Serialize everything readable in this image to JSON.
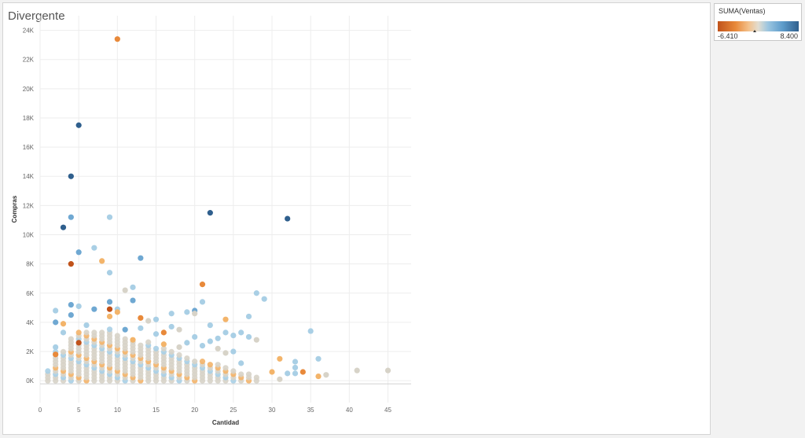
{
  "sheet": {
    "title": "Divergente"
  },
  "legend": {
    "title": "SUMA(Ventas)",
    "min_label": "-6.410",
    "max_label": "8.400"
  },
  "colors": {
    "dark_orange": "#c0521a",
    "orange": "#e8893a",
    "light_orange": "#f3b46a",
    "neutral": "#d7d3c8",
    "light_blue": "#a9cfe5",
    "blue": "#6fa8d2",
    "dark_blue": "#2f5f8d",
    "gridline": "#ededed"
  },
  "chart_data": {
    "type": "scatter",
    "title": "",
    "xlabel": "Cantidad",
    "ylabel": "Compras",
    "xlim": [
      0,
      48
    ],
    "ylim": [
      -1500,
      25000
    ],
    "xticks": [
      0,
      5,
      10,
      15,
      20,
      25,
      30,
      35,
      40,
      45
    ],
    "xtick_labels": [
      "0",
      "5",
      "10",
      "15",
      "20",
      "25",
      "30",
      "35",
      "40",
      "45"
    ],
    "yticks": [
      0,
      2000,
      4000,
      6000,
      8000,
      10000,
      12000,
      14000,
      16000,
      18000,
      20000,
      22000,
      24000
    ],
    "ytick_labels": [
      "0K",
      "2K",
      "4K",
      "6K",
      "8K",
      "10K",
      "12K",
      "14K",
      "16K",
      "18K",
      "20K",
      "22K",
      "24K"
    ],
    "color_field": "SUMA(Ventas)",
    "points": [
      {
        "x": 10,
        "y": 23400,
        "c": "orange"
      },
      {
        "x": 5,
        "y": 17500,
        "c": "dark_blue"
      },
      {
        "x": 4,
        "y": 14000,
        "c": "dark_blue"
      },
      {
        "x": 22,
        "y": 11500,
        "c": "dark_blue"
      },
      {
        "x": 4,
        "y": 11200,
        "c": "blue"
      },
      {
        "x": 9,
        "y": 11200,
        "c": "light_blue"
      },
      {
        "x": 32,
        "y": 11100,
        "c": "dark_blue"
      },
      {
        "x": 3,
        "y": 10500,
        "c": "dark_blue"
      },
      {
        "x": 7,
        "y": 9100,
        "c": "light_blue"
      },
      {
        "x": 5,
        "y": 8800,
        "c": "blue"
      },
      {
        "x": 13,
        "y": 8400,
        "c": "blue"
      },
      {
        "x": 8,
        "y": 8200,
        "c": "light_orange"
      },
      {
        "x": 4,
        "y": 8000,
        "c": "dark_orange"
      },
      {
        "x": 9,
        "y": 7400,
        "c": "light_blue"
      },
      {
        "x": 21,
        "y": 6600,
        "c": "orange"
      },
      {
        "x": 12,
        "y": 6400,
        "c": "light_blue"
      },
      {
        "x": 11,
        "y": 6200,
        "c": "neutral"
      },
      {
        "x": 28,
        "y": 6000,
        "c": "light_blue"
      },
      {
        "x": 29,
        "y": 5600,
        "c": "light_blue"
      },
      {
        "x": 12,
        "y": 5500,
        "c": "blue"
      },
      {
        "x": 21,
        "y": 5400,
        "c": "light_blue"
      },
      {
        "x": 9,
        "y": 5400,
        "c": "blue"
      },
      {
        "x": 4,
        "y": 5200,
        "c": "blue"
      },
      {
        "x": 5,
        "y": 5100,
        "c": "light_blue"
      },
      {
        "x": 9,
        "y": 4900,
        "c": "dark_orange"
      },
      {
        "x": 10,
        "y": 4900,
        "c": "light_blue"
      },
      {
        "x": 7,
        "y": 4900,
        "c": "blue"
      },
      {
        "x": 2,
        "y": 4800,
        "c": "light_blue"
      },
      {
        "x": 20,
        "y": 4800,
        "c": "blue"
      },
      {
        "x": 10,
        "y": 4700,
        "c": "light_orange"
      },
      {
        "x": 17,
        "y": 4600,
        "c": "light_blue"
      },
      {
        "x": 19,
        "y": 4700,
        "c": "light_blue"
      },
      {
        "x": 20,
        "y": 4600,
        "c": "neutral"
      },
      {
        "x": 4,
        "y": 4500,
        "c": "blue"
      },
      {
        "x": 9,
        "y": 4400,
        "c": "light_orange"
      },
      {
        "x": 27,
        "y": 4400,
        "c": "light_blue"
      },
      {
        "x": 13,
        "y": 4300,
        "c": "orange"
      },
      {
        "x": 15,
        "y": 4200,
        "c": "light_blue"
      },
      {
        "x": 24,
        "y": 4200,
        "c": "light_orange"
      },
      {
        "x": 14,
        "y": 4100,
        "c": "neutral"
      },
      {
        "x": 2,
        "y": 4000,
        "c": "blue"
      },
      {
        "x": 3,
        "y": 3900,
        "c": "light_orange"
      },
      {
        "x": 22,
        "y": 3800,
        "c": "light_blue"
      },
      {
        "x": 6,
        "y": 3800,
        "c": "light_blue"
      },
      {
        "x": 17,
        "y": 3700,
        "c": "light_blue"
      },
      {
        "x": 13,
        "y": 3600,
        "c": "light_blue"
      },
      {
        "x": 11,
        "y": 3500,
        "c": "blue"
      },
      {
        "x": 18,
        "y": 3500,
        "c": "neutral"
      },
      {
        "x": 35,
        "y": 3400,
        "c": "light_blue"
      },
      {
        "x": 16,
        "y": 3300,
        "c": "orange"
      },
      {
        "x": 24,
        "y": 3300,
        "c": "light_blue"
      },
      {
        "x": 26,
        "y": 3300,
        "c": "light_blue"
      },
      {
        "x": 3,
        "y": 3300,
        "c": "light_blue"
      },
      {
        "x": 15,
        "y": 3200,
        "c": "light_blue"
      },
      {
        "x": 25,
        "y": 3100,
        "c": "light_blue"
      },
      {
        "x": 27,
        "y": 3000,
        "c": "light_blue"
      },
      {
        "x": 20,
        "y": 3000,
        "c": "light_blue"
      },
      {
        "x": 23,
        "y": 2900,
        "c": "light_blue"
      },
      {
        "x": 12,
        "y": 2800,
        "c": "light_orange"
      },
      {
        "x": 28,
        "y": 2800,
        "c": "neutral"
      },
      {
        "x": 22,
        "y": 2700,
        "c": "light_blue"
      },
      {
        "x": 19,
        "y": 2600,
        "c": "light_blue"
      },
      {
        "x": 5,
        "y": 2600,
        "c": "dark_orange"
      },
      {
        "x": 16,
        "y": 2500,
        "c": "light_orange"
      },
      {
        "x": 21,
        "y": 2400,
        "c": "light_blue"
      },
      {
        "x": 18,
        "y": 2300,
        "c": "neutral"
      },
      {
        "x": 2,
        "y": 2300,
        "c": "light_blue"
      },
      {
        "x": 23,
        "y": 2200,
        "c": "neutral"
      },
      {
        "x": 25,
        "y": 2000,
        "c": "light_blue"
      },
      {
        "x": 24,
        "y": 1900,
        "c": "neutral"
      },
      {
        "x": 2,
        "y": 1800,
        "c": "orange"
      },
      {
        "x": 31,
        "y": 1500,
        "c": "light_orange"
      },
      {
        "x": 36,
        "y": 1500,
        "c": "light_blue"
      },
      {
        "x": 33,
        "y": 1300,
        "c": "light_blue"
      },
      {
        "x": 26,
        "y": 1200,
        "c": "light_blue"
      },
      {
        "x": 33,
        "y": 900,
        "c": "light_blue"
      },
      {
        "x": 41,
        "y": 700,
        "c": "neutral"
      },
      {
        "x": 45,
        "y": 700,
        "c": "neutral"
      },
      {
        "x": 30,
        "y": 600,
        "c": "light_orange"
      },
      {
        "x": 34,
        "y": 600,
        "c": "orange"
      },
      {
        "x": 32,
        "y": 500,
        "c": "light_blue"
      },
      {
        "x": 33,
        "y": 500,
        "c": "light_blue"
      },
      {
        "x": 37,
        "y": 400,
        "c": "neutral"
      },
      {
        "x": 36,
        "y": 300,
        "c": "light_orange"
      },
      {
        "x": 31,
        "y": 100,
        "c": "neutral"
      }
    ],
    "dense_columns": [
      {
        "x": 1,
        "max": 700
      },
      {
        "x": 2,
        "max": 2000
      },
      {
        "x": 3,
        "max": 2000
      },
      {
        "x": 4,
        "max": 3000
      },
      {
        "x": 5,
        "max": 3500
      },
      {
        "x": 6,
        "max": 3400
      },
      {
        "x": 7,
        "max": 3300
      },
      {
        "x": 8,
        "max": 3500
      },
      {
        "x": 9,
        "max": 3600
      },
      {
        "x": 10,
        "max": 3200
      },
      {
        "x": 11,
        "max": 3000
      },
      {
        "x": 12,
        "max": 2800
      },
      {
        "x": 13,
        "max": 2600
      },
      {
        "x": 14,
        "max": 2700
      },
      {
        "x": 15,
        "max": 2400
      },
      {
        "x": 16,
        "max": 2200
      },
      {
        "x": 17,
        "max": 2000
      },
      {
        "x": 18,
        "max": 1900
      },
      {
        "x": 19,
        "max": 1700
      },
      {
        "x": 20,
        "max": 1500
      },
      {
        "x": 21,
        "max": 1400
      },
      {
        "x": 22,
        "max": 1300
      },
      {
        "x": 23,
        "max": 1100
      },
      {
        "x": 24,
        "max": 900
      },
      {
        "x": 25,
        "max": 800
      },
      {
        "x": 26,
        "max": 600
      },
      {
        "x": 27,
        "max": 500
      },
      {
        "x": 28,
        "max": 400
      }
    ]
  }
}
